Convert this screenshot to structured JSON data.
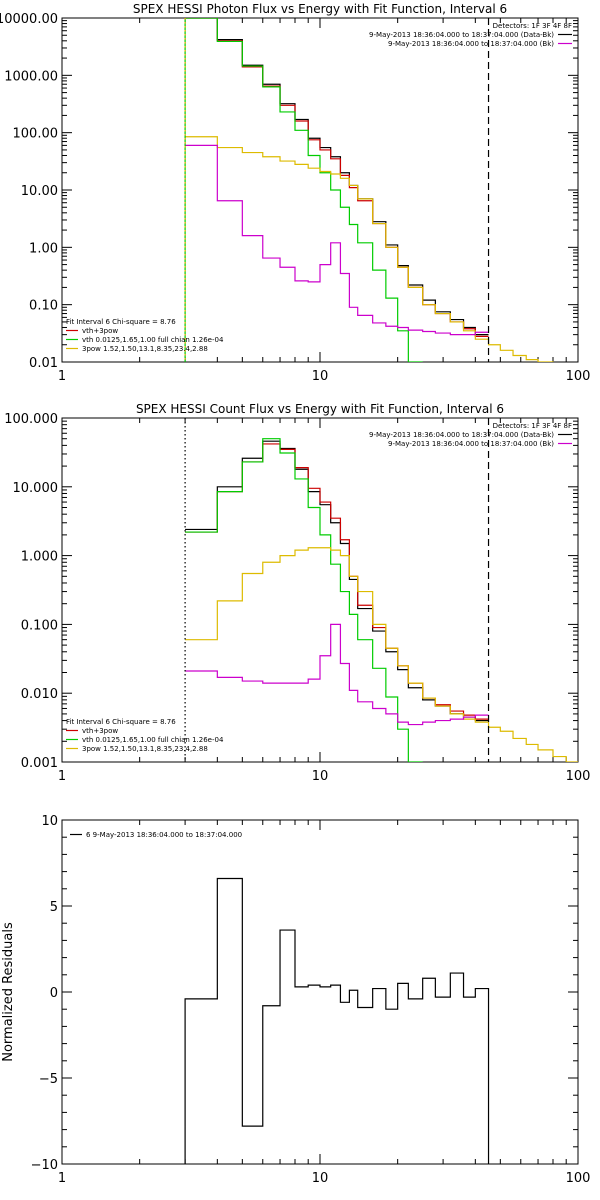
{
  "chart_data": [
    {
      "type": "line",
      "title": "SPEX HESSI Photon Flux vs Energy with Fit Function, Interval 6",
      "xscale": "log",
      "yscale": "log",
      "xlim": [
        1,
        100
      ],
      "ylim": [
        0.01,
        10000
      ],
      "x_ticks": [
        {
          "v": 1,
          "label": "1"
        },
        {
          "v": 10,
          "label": "10"
        },
        {
          "v": 100,
          "label": "100"
        }
      ],
      "y_ticks": [
        {
          "v": 0.01,
          "label": "0.01"
        },
        {
          "v": 0.1,
          "label": "0.10"
        },
        {
          "v": 1,
          "label": "1.00"
        },
        {
          "v": 10,
          "label": "10.00"
        },
        {
          "v": 100,
          "label": "100.00"
        },
        {
          "v": 1000,
          "label": "1000.00"
        },
        {
          "v": 10000,
          "label": "10000.00"
        }
      ],
      "vlines": [
        {
          "x": 3,
          "style": "solid",
          "color": "#00cc00"
        },
        {
          "x": 3,
          "style": "dotted",
          "color": "#ffa500"
        },
        {
          "x": 45,
          "style": "dashed",
          "color": "#000000"
        }
      ],
      "legend_right": {
        "header": "Detectors: 1F 3F 4F 8F",
        "entries": [
          {
            "label": "9-May-2013 18:36:04.000 to 18:37:04.000 (Data-Bk)",
            "color": "#000000"
          },
          {
            "label": "9-May-2013 18:36:04.000 to 18:37:04.000 (Bk)",
            "color": "#cc00cc"
          }
        ]
      },
      "legend_left": {
        "header": "Fit Interval 6   Chi-square = 8.76",
        "entries": [
          {
            "label": "vth+3pow",
            "color": "#cc0000"
          },
          {
            "label": "vth 0.0125,1.65,1.00  full chian 1.26e-04",
            "color": "#00cc00"
          },
          {
            "label": "3pow 1.52,1.50,13.1,8.35,23.4,2.88",
            "color": "#ddbb00"
          }
        ]
      },
      "edges": [
        3,
        4,
        5,
        6,
        7,
        8,
        9,
        10,
        11,
        12,
        13,
        14,
        16,
        18,
        20,
        22,
        25,
        28,
        32,
        36,
        40,
        45,
        50,
        56,
        63,
        70,
        80,
        90,
        100
      ],
      "series": [
        {
          "color": "#000000",
          "values": [
            10000,
            4200,
            1500,
            700,
            320,
            170,
            80,
            55,
            38,
            20,
            12,
            7,
            2.8,
            1.1,
            0.48,
            0.22,
            0.12,
            0.075,
            0.055,
            0.04,
            0.03,
            null,
            null,
            null,
            null,
            null,
            null,
            null
          ]
        },
        {
          "color": "#cc0000",
          "values": [
            10000,
            4000,
            1400,
            650,
            300,
            160,
            75,
            50,
            35,
            18,
            11,
            6.5,
            2.6,
            1.0,
            0.45,
            0.2,
            0.1,
            0.07,
            0.05,
            0.038,
            0.028,
            null,
            null,
            null,
            null,
            null,
            null,
            null
          ]
        },
        {
          "color": "#00cc00",
          "values": [
            10000,
            3900,
            1450,
            630,
            230,
            110,
            40,
            20,
            10,
            5,
            2.5,
            1.2,
            0.4,
            0.13,
            0.035,
            0.01,
            null,
            null,
            null,
            null,
            null,
            null,
            null,
            null,
            null,
            null,
            null,
            null
          ]
        },
        {
          "color": "#ddbb00",
          "values": [
            85,
            55,
            45,
            38,
            32,
            28,
            24,
            21,
            19,
            16,
            12,
            7,
            2.6,
            1.0,
            0.45,
            0.2,
            0.1,
            0.07,
            0.05,
            0.035,
            0.025,
            0.02,
            0.016,
            0.013,
            0.011,
            0.01,
            0.009,
            0.008
          ]
        },
        {
          "color": "#cc00cc",
          "values": [
            60,
            6.5,
            1.6,
            0.65,
            0.45,
            0.26,
            0.25,
            0.5,
            1.2,
            0.35,
            0.09,
            0.065,
            0.048,
            0.042,
            0.04,
            0.036,
            0.034,
            0.032,
            0.03,
            0.03,
            0.033,
            null,
            null,
            null,
            null,
            null,
            null,
            null
          ]
        }
      ]
    },
    {
      "type": "line",
      "title": "SPEX HESSI Count Flux vs Energy with Fit Function, Interval 6",
      "xscale": "log",
      "yscale": "log",
      "xlim": [
        1,
        100
      ],
      "ylim": [
        0.001,
        100
      ],
      "x_ticks": [
        {
          "v": 1,
          "label": "1"
        },
        {
          "v": 10,
          "label": "10"
        },
        {
          "v": 100,
          "label": "100"
        }
      ],
      "y_ticks": [
        {
          "v": 0.001,
          "label": "0.001"
        },
        {
          "v": 0.01,
          "label": "0.010"
        },
        {
          "v": 0.1,
          "label": "0.100"
        },
        {
          "v": 1,
          "label": "1.000"
        },
        {
          "v": 10,
          "label": "10.000"
        },
        {
          "v": 100,
          "label": "100.000"
        }
      ],
      "vlines": [
        {
          "x": 3,
          "style": "dotted",
          "color": "#000000"
        },
        {
          "x": 45,
          "style": "dashed",
          "color": "#000000"
        }
      ],
      "legend_right": {
        "header": "Detectors: 1F 3F 4F 8F",
        "entries": [
          {
            "label": "9-May-2013 18:36:04.000 to 18:37:04.000 (Data-Bk)",
            "color": "#000000"
          },
          {
            "label": "9-May-2013 18:36:04.000 to 18:37:04.000 (Bk)",
            "color": "#cc00cc"
          }
        ]
      },
      "legend_left": {
        "header": "Fit Interval 6   Chi-square = 8.76",
        "entries": [
          {
            "label": "vth+3pow",
            "color": "#cc0000"
          },
          {
            "label": "vth 0.0125,1.65,1.00  full chian 1.26e-04",
            "color": "#00cc00"
          },
          {
            "label": "3pow 1.52,1.50,13.1,8.35,23.4,2.88",
            "color": "#ddbb00"
          }
        ]
      },
      "edges": [
        3,
        4,
        5,
        6,
        7,
        8,
        9,
        10,
        11,
        12,
        13,
        14,
        16,
        18,
        20,
        22,
        25,
        28,
        32,
        36,
        40,
        45,
        50,
        56,
        63,
        70,
        80,
        90,
        100
      ],
      "series": [
        {
          "color": "#000000",
          "values": [
            2.4,
            10,
            26,
            46,
            36,
            18,
            8.5,
            5.5,
            3.0,
            1.5,
            0.45,
            0.17,
            0.08,
            0.04,
            0.022,
            0.012,
            0.008,
            0.0065,
            0.005,
            0.0045,
            0.004,
            null,
            null,
            null,
            null,
            null,
            null,
            null
          ]
        },
        {
          "color": "#cc0000",
          "values": [
            2.2,
            8.5,
            23,
            42,
            35,
            19,
            9.5,
            6.0,
            3.5,
            1.7,
            0.5,
            0.19,
            0.09,
            0.045,
            0.025,
            0.014,
            0.0085,
            0.0068,
            0.0055,
            0.0048,
            0.0042,
            null,
            null,
            null,
            null,
            null,
            null,
            null
          ]
        },
        {
          "color": "#00cc00",
          "values": [
            2.2,
            8.5,
            23,
            50,
            31,
            13,
            5.0,
            2.0,
            0.75,
            0.3,
            0.14,
            0.06,
            0.023,
            0.0088,
            0.003,
            0.001,
            null,
            null,
            null,
            null,
            null,
            null,
            null,
            null,
            null,
            null,
            null,
            null
          ]
        },
        {
          "color": "#ddbb00",
          "values": [
            0.06,
            0.22,
            0.55,
            0.8,
            1.0,
            1.2,
            1.3,
            1.3,
            1.2,
            1.0,
            0.5,
            0.3,
            0.1,
            0.045,
            0.025,
            0.014,
            0.0085,
            0.0065,
            0.005,
            0.0042,
            0.0038,
            0.0032,
            0.0028,
            0.0022,
            0.0018,
            0.0015,
            0.0012,
            0.001
          ]
        },
        {
          "color": "#cc00cc",
          "values": [
            0.021,
            0.017,
            0.015,
            0.014,
            0.014,
            0.014,
            0.016,
            0.035,
            0.1,
            0.027,
            0.011,
            0.0075,
            0.006,
            0.005,
            0.0038,
            0.0035,
            0.0038,
            0.004,
            0.0042,
            0.0045,
            0.0048,
            null,
            null,
            null,
            null,
            null,
            null,
            null
          ]
        }
      ]
    },
    {
      "type": "line",
      "title": "",
      "xscale": "log",
      "yscale": "linear",
      "xlim": [
        1,
        100
      ],
      "ylim": [
        -10,
        10
      ],
      "ylabel": "Normalized Residuals",
      "x_ticks": [
        {
          "v": 1,
          "label": "1"
        },
        {
          "v": 10,
          "label": "10"
        },
        {
          "v": 100,
          "label": "100"
        }
      ],
      "y_ticks": [
        {
          "v": -10,
          "label": "−10"
        },
        {
          "v": -5,
          "label": "−5"
        },
        {
          "v": 0,
          "label": "0"
        },
        {
          "v": 5,
          "label": "5"
        },
        {
          "v": 10,
          "label": "10"
        }
      ],
      "legend_right": null,
      "legend_left_top": {
        "entries": [
          {
            "label": "6  9-May-2013 18:36:04.000 to 18:37:04.000",
            "color": "#000000"
          }
        ]
      },
      "edges": [
        3,
        4,
        5,
        6,
        7,
        8,
        9,
        10,
        11,
        12,
        13,
        14,
        16,
        18,
        20,
        22,
        25,
        28,
        32,
        36,
        40,
        45
      ],
      "series": [
        {
          "color": "#000000",
          "values": [
            -0.4,
            6.6,
            -7.8,
            -0.8,
            3.6,
            0.3,
            0.4,
            0.3,
            0.4,
            -0.6,
            0.1,
            -0.9,
            0.2,
            -1.0,
            0.5,
            -0.4,
            0.8,
            -0.3,
            1.1,
            -0.3,
            0.2
          ],
          "drop_ends": true
        }
      ]
    }
  ]
}
